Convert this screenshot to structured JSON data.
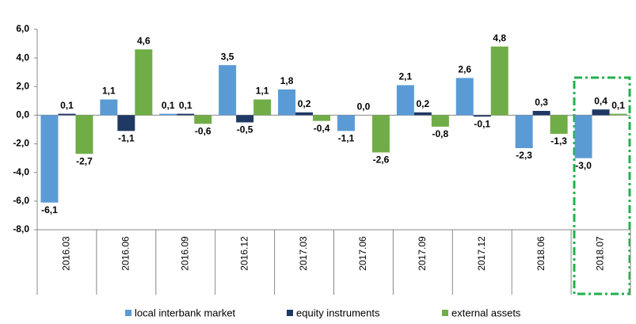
{
  "chart_data": {
    "type": "bar",
    "categories": [
      "2016.03",
      "2016.06",
      "2016.09",
      "2016.12",
      "2017.03",
      "2017.06",
      "2017.09",
      "2017.12",
      "2018.06",
      "2018.07"
    ],
    "series": [
      {
        "name": "local interbank market",
        "color": "#5b9bd5",
        "values": [
          -6.1,
          1.1,
          0.1,
          3.5,
          1.8,
          -1.1,
          2.1,
          2.6,
          -2.3,
          -3.0
        ],
        "value_labels": [
          "-6,1",
          "1,1",
          "0,1",
          "3,5",
          "1,8",
          "-1,1",
          "2,1",
          "2,6",
          "-2,3",
          "-3,0"
        ]
      },
      {
        "name": "equity instruments",
        "color": "#1f3864",
        "values": [
          0.1,
          -1.1,
          0.1,
          -0.5,
          0.2,
          0.0,
          0.2,
          -0.1,
          0.3,
          0.4
        ],
        "value_labels": [
          "0,1",
          "-1,1",
          "0,1",
          "-0,5",
          "0,2",
          "0,0",
          "0,2",
          "-0,1",
          "0,3",
          "0,4"
        ]
      },
      {
        "name": "external assets",
        "color": "#70ad47",
        "values": [
          -2.7,
          4.6,
          -0.6,
          1.1,
          -0.4,
          -2.6,
          -0.8,
          4.8,
          -1.3,
          0.1
        ],
        "value_labels": [
          "-2,7",
          "4,6",
          "-0,6",
          "1,1",
          "-0,4",
          "-2,6",
          "-0,8",
          "4,8",
          "-1,3",
          "0,1"
        ]
      }
    ],
    "ylim": [
      -8,
      6
    ],
    "yticks": [
      {
        "value": -8,
        "label": "-8,0"
      },
      {
        "value": -6,
        "label": "-6,0"
      },
      {
        "value": -4,
        "label": "-4,0"
      },
      {
        "value": -2,
        "label": "-2,0"
      },
      {
        "value": 0,
        "label": "0,0"
      },
      {
        "value": 2,
        "label": "2,0"
      },
      {
        "value": 4,
        "label": "4,0"
      },
      {
        "value": 6,
        "label": "6,0"
      }
    ],
    "legend": "bottom"
  }
}
